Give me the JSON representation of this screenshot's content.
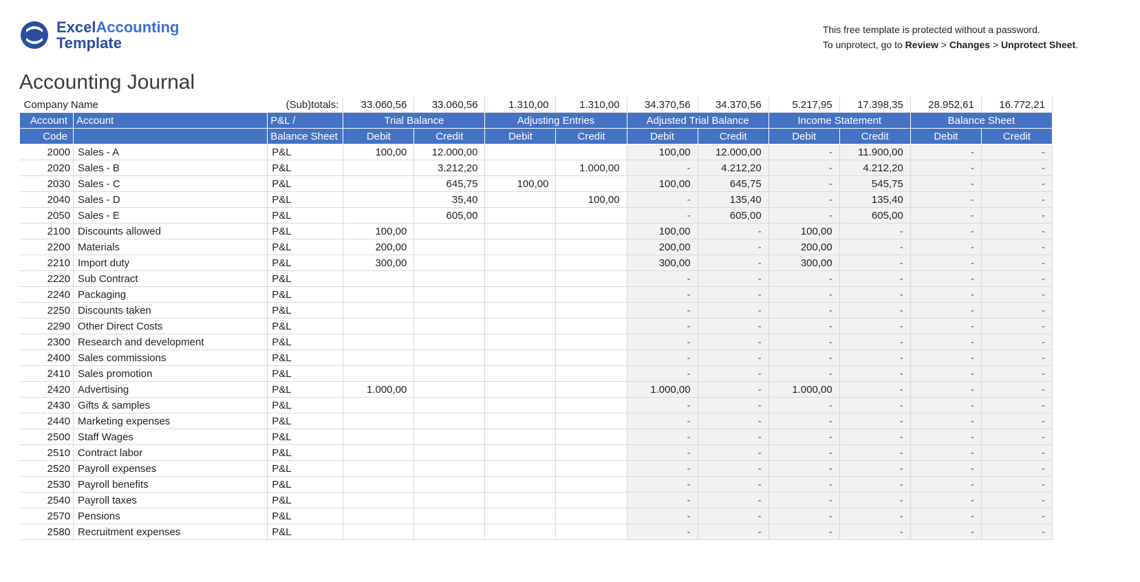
{
  "brand": {
    "word1": "Excel",
    "word2": "Accounting",
    "word3": "Template",
    "color_primary": "#2b4da0",
    "color_accent": "#3a6fd8"
  },
  "notice": {
    "line1": "This free template is protected without a password.",
    "line2_prefix": "To unprotect, go to ",
    "b1": "Review",
    "sep": " > ",
    "b2": "Changes",
    "b3": "Unprotect Sheet",
    "suffix": "."
  },
  "title": "Accounting Journal",
  "row_company": {
    "company_label": "Company Name",
    "subtotals_label": "(Sub)totals:"
  },
  "subtotals": [
    "33.060,56",
    "33.060,56",
    "1.310,00",
    "1.310,00",
    "34.370,56",
    "34.370,56",
    "5.217,95",
    "17.398,35",
    "28.952,61",
    "16.772,21"
  ],
  "header1": {
    "account_code": "Account",
    "account": "Account",
    "pnl": "P&L /",
    "groups": [
      "Trial Balance",
      "Adjusting Entries",
      "Adjusted Trial Balance",
      "Income Statement",
      "Balance Sheet"
    ]
  },
  "header2": {
    "code": "Code",
    "balance_sheet": "Balance Sheet",
    "debit": "Debit",
    "credit": "Credit"
  },
  "colors": {
    "header_bg": "#4472c4",
    "header_fg": "#ffffff",
    "grid": "#d9d9d9",
    "grey_cell": "#f2f2f2"
  },
  "rows": [
    {
      "code": "2000",
      "acct": "Sales - A",
      "type": "P&L",
      "tb_d": "100,00",
      "tb_c": "12.000,00",
      "ae_d": "",
      "ae_c": "",
      "atb_d": "100,00",
      "atb_c": "12.000,00",
      "is_d": "-",
      "is_c": "11.900,00",
      "bs_d": "-",
      "bs_c": "-"
    },
    {
      "code": "2020",
      "acct": "Sales - B",
      "type": "P&L",
      "tb_d": "",
      "tb_c": "3.212,20",
      "ae_d": "",
      "ae_c": "1.000,00",
      "atb_d": "-",
      "atb_c": "4.212,20",
      "is_d": "-",
      "is_c": "4.212,20",
      "bs_d": "-",
      "bs_c": "-"
    },
    {
      "code": "2030",
      "acct": "Sales - C",
      "type": "P&L",
      "tb_d": "",
      "tb_c": "645,75",
      "ae_d": "100,00",
      "ae_c": "",
      "atb_d": "100,00",
      "atb_c": "645,75",
      "is_d": "-",
      "is_c": "545,75",
      "bs_d": "-",
      "bs_c": "-"
    },
    {
      "code": "2040",
      "acct": "Sales - D",
      "type": "P&L",
      "tb_d": "",
      "tb_c": "35,40",
      "ae_d": "",
      "ae_c": "100,00",
      "atb_d": "-",
      "atb_c": "135,40",
      "is_d": "-",
      "is_c": "135,40",
      "bs_d": "-",
      "bs_c": "-"
    },
    {
      "code": "2050",
      "acct": "Sales - E",
      "type": "P&L",
      "tb_d": "",
      "tb_c": "605,00",
      "ae_d": "",
      "ae_c": "",
      "atb_d": "-",
      "atb_c": "605,00",
      "is_d": "-",
      "is_c": "605,00",
      "bs_d": "-",
      "bs_c": "-"
    },
    {
      "code": "2100",
      "acct": "Discounts allowed",
      "type": "P&L",
      "tb_d": "100,00",
      "tb_c": "",
      "ae_d": "",
      "ae_c": "",
      "atb_d": "100,00",
      "atb_c": "-",
      "is_d": "100,00",
      "is_c": "-",
      "bs_d": "-",
      "bs_c": "-"
    },
    {
      "code": "2200",
      "acct": "Materials",
      "type": "P&L",
      "tb_d": "200,00",
      "tb_c": "",
      "ae_d": "",
      "ae_c": "",
      "atb_d": "200,00",
      "atb_c": "-",
      "is_d": "200,00",
      "is_c": "-",
      "bs_d": "-",
      "bs_c": "-"
    },
    {
      "code": "2210",
      "acct": "Import duty",
      "type": "P&L",
      "tb_d": "300,00",
      "tb_c": "",
      "ae_d": "",
      "ae_c": "",
      "atb_d": "300,00",
      "atb_c": "-",
      "is_d": "300,00",
      "is_c": "-",
      "bs_d": "-",
      "bs_c": "-"
    },
    {
      "code": "2220",
      "acct": "Sub Contract",
      "type": "P&L",
      "tb_d": "",
      "tb_c": "",
      "ae_d": "",
      "ae_c": "",
      "atb_d": "-",
      "atb_c": "-",
      "is_d": "-",
      "is_c": "-",
      "bs_d": "-",
      "bs_c": "-"
    },
    {
      "code": "2240",
      "acct": "Packaging",
      "type": "P&L",
      "tb_d": "",
      "tb_c": "",
      "ae_d": "",
      "ae_c": "",
      "atb_d": "-",
      "atb_c": "-",
      "is_d": "-",
      "is_c": "-",
      "bs_d": "-",
      "bs_c": "-"
    },
    {
      "code": "2250",
      "acct": "Discounts taken",
      "type": "P&L",
      "tb_d": "",
      "tb_c": "",
      "ae_d": "",
      "ae_c": "",
      "atb_d": "-",
      "atb_c": "-",
      "is_d": "-",
      "is_c": "-",
      "bs_d": "-",
      "bs_c": "-"
    },
    {
      "code": "2290",
      "acct": "Other Direct Costs",
      "type": "P&L",
      "tb_d": "",
      "tb_c": "",
      "ae_d": "",
      "ae_c": "",
      "atb_d": "-",
      "atb_c": "-",
      "is_d": "-",
      "is_c": "-",
      "bs_d": "-",
      "bs_c": "-"
    },
    {
      "code": "2300",
      "acct": "Research and development",
      "type": "P&L",
      "tb_d": "",
      "tb_c": "",
      "ae_d": "",
      "ae_c": "",
      "atb_d": "-",
      "atb_c": "-",
      "is_d": "-",
      "is_c": "-",
      "bs_d": "-",
      "bs_c": "-"
    },
    {
      "code": "2400",
      "acct": "Sales commissions",
      "type": "P&L",
      "tb_d": "",
      "tb_c": "",
      "ae_d": "",
      "ae_c": "",
      "atb_d": "-",
      "atb_c": "-",
      "is_d": "-",
      "is_c": "-",
      "bs_d": "-",
      "bs_c": "-"
    },
    {
      "code": "2410",
      "acct": "Sales promotion",
      "type": "P&L",
      "tb_d": "",
      "tb_c": "",
      "ae_d": "",
      "ae_c": "",
      "atb_d": "-",
      "atb_c": "-",
      "is_d": "-",
      "is_c": "-",
      "bs_d": "-",
      "bs_c": "-"
    },
    {
      "code": "2420",
      "acct": "Advertising",
      "type": "P&L",
      "tb_d": "1.000,00",
      "tb_c": "",
      "ae_d": "",
      "ae_c": "",
      "atb_d": "1.000,00",
      "atb_c": "-",
      "is_d": "1.000,00",
      "is_c": "-",
      "bs_d": "-",
      "bs_c": "-"
    },
    {
      "code": "2430",
      "acct": "Gifts & samples",
      "type": "P&L",
      "tb_d": "",
      "tb_c": "",
      "ae_d": "",
      "ae_c": "",
      "atb_d": "-",
      "atb_c": "-",
      "is_d": "-",
      "is_c": "-",
      "bs_d": "-",
      "bs_c": "-"
    },
    {
      "code": "2440",
      "acct": "Marketing expenses",
      "type": "P&L",
      "tb_d": "",
      "tb_c": "",
      "ae_d": "",
      "ae_c": "",
      "atb_d": "-",
      "atb_c": "-",
      "is_d": "-",
      "is_c": "-",
      "bs_d": "-",
      "bs_c": "-"
    },
    {
      "code": "2500",
      "acct": "Staff Wages",
      "type": "P&L",
      "tb_d": "",
      "tb_c": "",
      "ae_d": "",
      "ae_c": "",
      "atb_d": "-",
      "atb_c": "-",
      "is_d": "-",
      "is_c": "-",
      "bs_d": "-",
      "bs_c": "-"
    },
    {
      "code": "2510",
      "acct": "Contract labor",
      "type": "P&L",
      "tb_d": "",
      "tb_c": "",
      "ae_d": "",
      "ae_c": "",
      "atb_d": "-",
      "atb_c": "-",
      "is_d": "-",
      "is_c": "-",
      "bs_d": "-",
      "bs_c": "-"
    },
    {
      "code": "2520",
      "acct": "Payroll expenses",
      "type": "P&L",
      "tb_d": "",
      "tb_c": "",
      "ae_d": "",
      "ae_c": "",
      "atb_d": "-",
      "atb_c": "-",
      "is_d": "-",
      "is_c": "-",
      "bs_d": "-",
      "bs_c": "-"
    },
    {
      "code": "2530",
      "acct": "Payroll benefits",
      "type": "P&L",
      "tb_d": "",
      "tb_c": "",
      "ae_d": "",
      "ae_c": "",
      "atb_d": "-",
      "atb_c": "-",
      "is_d": "-",
      "is_c": "-",
      "bs_d": "-",
      "bs_c": "-"
    },
    {
      "code": "2540",
      "acct": "Payroll taxes",
      "type": "P&L",
      "tb_d": "",
      "tb_c": "",
      "ae_d": "",
      "ae_c": "",
      "atb_d": "-",
      "atb_c": "-",
      "is_d": "-",
      "is_c": "-",
      "bs_d": "-",
      "bs_c": "-"
    },
    {
      "code": "2570",
      "acct": "Pensions",
      "type": "P&L",
      "tb_d": "",
      "tb_c": "",
      "ae_d": "",
      "ae_c": "",
      "atb_d": "-",
      "atb_c": "-",
      "is_d": "-",
      "is_c": "-",
      "bs_d": "-",
      "bs_c": "-"
    },
    {
      "code": "2580",
      "acct": "Recruitment expenses",
      "type": "P&L",
      "tb_d": "",
      "tb_c": "",
      "ae_d": "",
      "ae_c": "",
      "atb_d": "-",
      "atb_c": "-",
      "is_d": "-",
      "is_c": "-",
      "bs_d": "-",
      "bs_c": "-"
    }
  ]
}
